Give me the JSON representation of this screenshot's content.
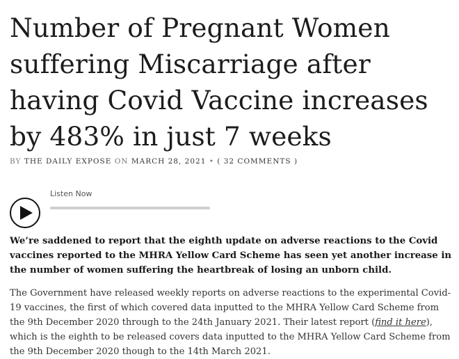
{
  "article": {
    "title": "Number of Pregnant Women suffering Miscarriage after having Covid Vaccine increases by 483% in just 7 weeks",
    "byline": {
      "by": "BY",
      "author": "THE DAILY EXPOSE",
      "on": "ON",
      "date": "MARCH 28, 2021",
      "separator": "•",
      "comments": "( 32 COMMENTS )"
    },
    "player": {
      "label": "Listen Now",
      "icon": "play-icon"
    },
    "lead": "We’re saddened to report that the eighth update on adverse reactions to the Covid vaccines reported to the MHRA Yellow Card Scheme has seen yet another increase in the number of women suffering the heartbreak of losing an unborn child.",
    "body": {
      "part1": "The Government have released weekly reports on adverse reactions to the experimental Covid-19 vaccines, the first of which covered data inputted to the MHRA Yellow Card Scheme from the 9th December 2020 through to the 24th January 2021. Their latest report (",
      "link": "find it here",
      "part2": "), which is the eighth to be released covers data inputted to the MHRA Yellow Card Scheme from the 9th December 2020 though to the 14th March 2021."
    }
  }
}
